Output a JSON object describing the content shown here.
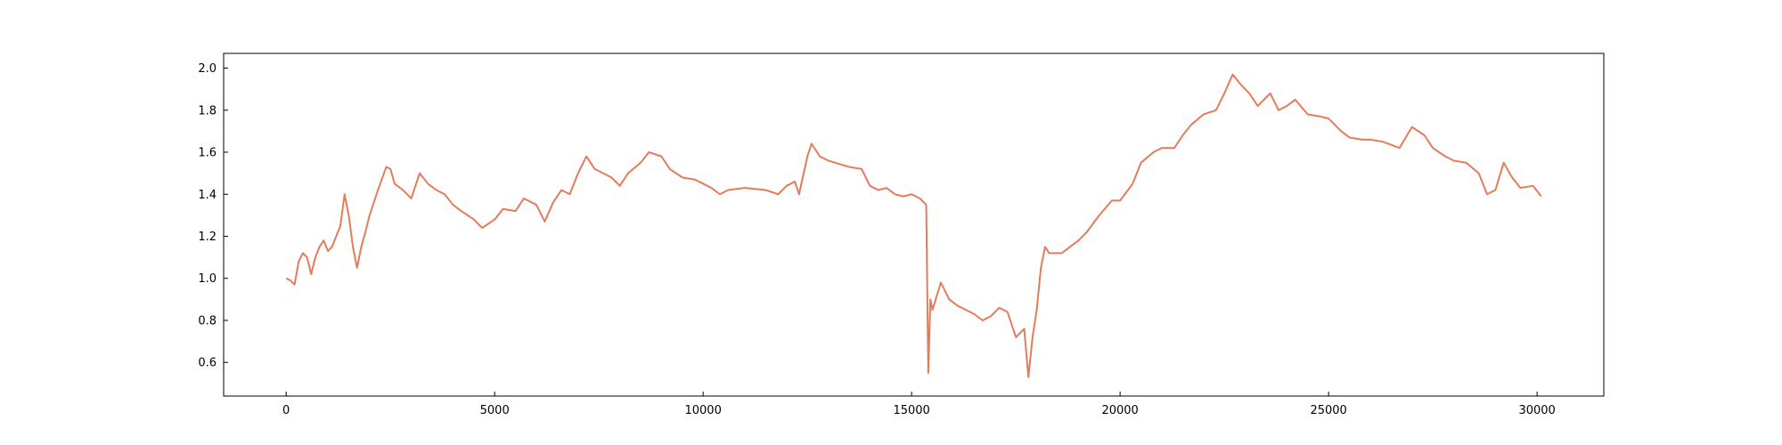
{
  "chart_data": {
    "type": "line",
    "color": "#e47b5b",
    "x": [
      0,
      100,
      200,
      300,
      400,
      500,
      600,
      700,
      800,
      900,
      1000,
      1100,
      1200,
      1300,
      1400,
      1500,
      1600,
      1700,
      1800,
      1900,
      2000,
      2200,
      2400,
      2500,
      2600,
      2800,
      3000,
      3200,
      3400,
      3600,
      3800,
      4000,
      4200,
      4500,
      4700,
      5000,
      5200,
      5500,
      5700,
      6000,
      6200,
      6400,
      6600,
      6800,
      7000,
      7200,
      7400,
      7600,
      7800,
      8000,
      8200,
      8500,
      8700,
      9000,
      9200,
      9500,
      9800,
      10000,
      10200,
      10400,
      10600,
      11000,
      11500,
      11800,
      12000,
      12200,
      12300,
      12500,
      12600,
      12800,
      13000,
      13500,
      13800,
      14000,
      14200,
      14400,
      14600,
      14800,
      15000,
      15200,
      15350,
      15400,
      15450,
      15500,
      15700,
      15900,
      16100,
      16300,
      16500,
      16700,
      16900,
      17100,
      17300,
      17500,
      17700,
      17800,
      17900,
      18000,
      18100,
      18200,
      18300,
      18600,
      18800,
      19000,
      19200,
      19500,
      19800,
      20000,
      20300,
      20500,
      20800,
      21000,
      21300,
      21500,
      21700,
      22000,
      22300,
      22500,
      22700,
      22900,
      23100,
      23300,
      23600,
      23800,
      24000,
      24200,
      24500,
      24800,
      25000,
      25300,
      25500,
      25800,
      26000,
      26300,
      26700,
      27000,
      27300,
      27500,
      27800,
      28000,
      28300,
      28600,
      28800,
      29000,
      29200,
      29400,
      29600,
      29900,
      30100
    ],
    "values": [
      1.0,
      0.99,
      0.97,
      1.08,
      1.12,
      1.1,
      1.02,
      1.1,
      1.15,
      1.18,
      1.13,
      1.15,
      1.2,
      1.25,
      1.4,
      1.3,
      1.15,
      1.05,
      1.15,
      1.22,
      1.3,
      1.42,
      1.53,
      1.52,
      1.45,
      1.42,
      1.38,
      1.5,
      1.45,
      1.42,
      1.4,
      1.35,
      1.32,
      1.28,
      1.24,
      1.28,
      1.33,
      1.32,
      1.38,
      1.35,
      1.27,
      1.36,
      1.42,
      1.4,
      1.5,
      1.58,
      1.52,
      1.5,
      1.48,
      1.44,
      1.5,
      1.55,
      1.6,
      1.58,
      1.52,
      1.48,
      1.47,
      1.45,
      1.43,
      1.4,
      1.42,
      1.43,
      1.42,
      1.4,
      1.44,
      1.46,
      1.4,
      1.58,
      1.64,
      1.58,
      1.56,
      1.53,
      1.52,
      1.44,
      1.42,
      1.43,
      1.4,
      1.39,
      1.4,
      1.38,
      1.35,
      0.55,
      0.9,
      0.85,
      0.98,
      0.9,
      0.87,
      0.85,
      0.83,
      0.8,
      0.82,
      0.86,
      0.84,
      0.72,
      0.76,
      0.53,
      0.72,
      0.85,
      1.05,
      1.15,
      1.12,
      1.12,
      1.15,
      1.18,
      1.22,
      1.3,
      1.37,
      1.37,
      1.45,
      1.55,
      1.6,
      1.62,
      1.62,
      1.68,
      1.73,
      1.78,
      1.8,
      1.88,
      1.97,
      1.92,
      1.88,
      1.82,
      1.88,
      1.8,
      1.82,
      1.85,
      1.78,
      1.77,
      1.76,
      1.7,
      1.67,
      1.66,
      1.66,
      1.65,
      1.62,
      1.72,
      1.68,
      1.62,
      1.58,
      1.56,
      1.55,
      1.5,
      1.4,
      1.42,
      1.55,
      1.48,
      1.43,
      1.44,
      1.39
    ],
    "xlim": [
      -1500,
      31600
    ],
    "xticks": [
      0,
      5000,
      10000,
      15000,
      20000,
      25000,
      30000
    ],
    "ylim": [
      0.44,
      2.07
    ],
    "yticks": [
      0.6,
      0.8,
      {
        "value": 1,
        "label": "1.0"
      },
      1.2,
      1.4,
      1.6,
      1.8,
      {
        "value": 2,
        "label": "2.0"
      }
    ]
  }
}
